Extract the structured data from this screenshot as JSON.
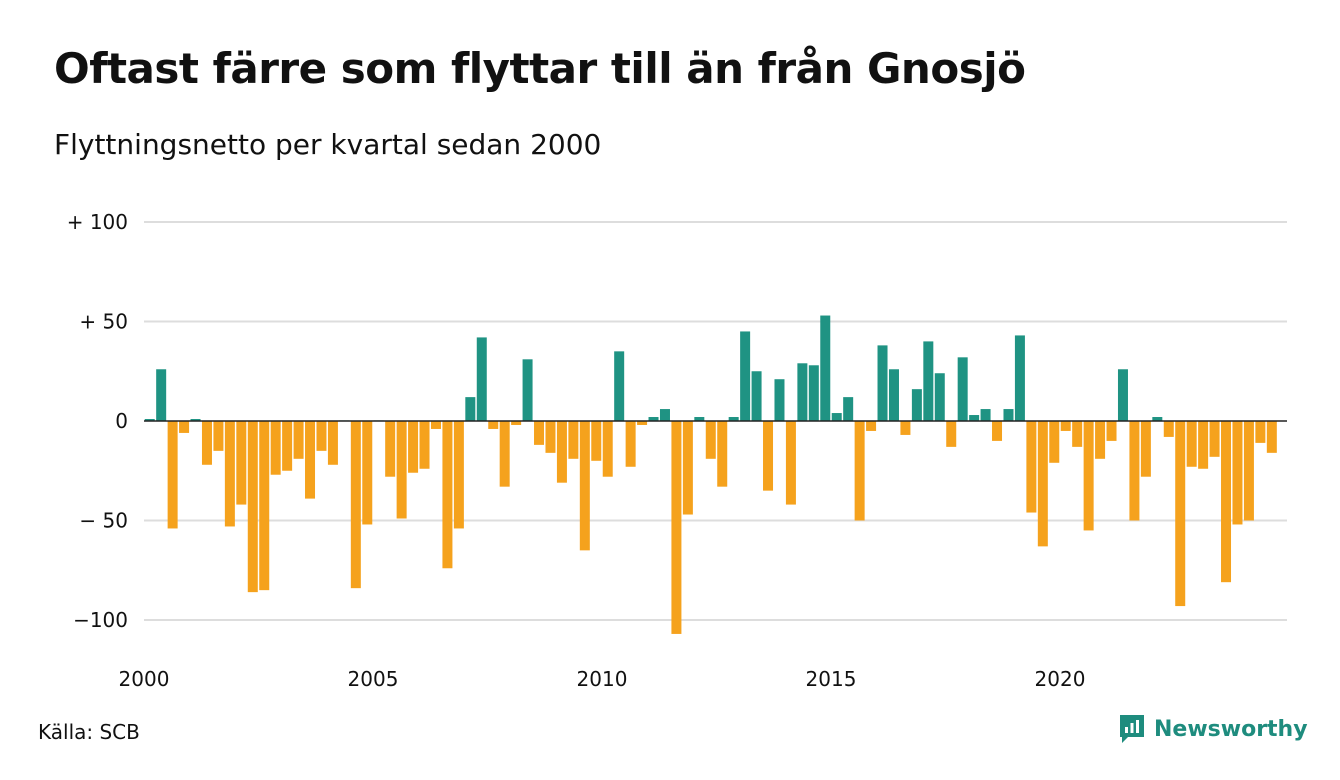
{
  "header": {
    "title": "Oftast färre som flyttar till än från Gnosjö",
    "subtitle": "Flyttningsnetto per kvartal sedan 2000"
  },
  "footer": {
    "source": "Källa: SCB",
    "brand": "Newsworthy",
    "brand_icon": "newsworthy-logo-icon"
  },
  "colors": {
    "positive": "#1f9383",
    "negative": "#f5a21d",
    "grid": "#dddddd",
    "brand": "#1e8c7e"
  },
  "chart_data": {
    "type": "bar",
    "title": "Oftast färre som flyttar till än från Gnosjö",
    "subtitle": "Flyttningsnetto per kvartal sedan 2000",
    "x_start": "2000-Q1",
    "x_ticks": [
      "2000",
      "2005",
      "2010",
      "2015",
      "2020"
    ],
    "y_ticks": [
      {
        "value": 100,
        "label": "+ 100"
      },
      {
        "value": 50,
        "label": "+  50"
      },
      {
        "value": 0,
        "label": "0"
      },
      {
        "value": -50,
        "label": "− 50"
      },
      {
        "value": -100,
        "label": "−100"
      }
    ],
    "ylim": [
      -107,
      105
    ],
    "grid": true,
    "values": [
      1,
      26,
      -54,
      -6,
      1,
      -22,
      -15,
      -53,
      -42,
      -86,
      -85,
      -27,
      -25,
      -19,
      -39,
      -15,
      -22,
      0,
      -84,
      -52,
      0,
      -28,
      -49,
      -26,
      -24,
      -4,
      -74,
      -54,
      12,
      42,
      -4,
      -33,
      -2,
      31,
      -12,
      -16,
      -31,
      -19,
      -65,
      -20,
      -28,
      35,
      -23,
      -2,
      2,
      6,
      -107,
      -47,
      2,
      -19,
      -33,
      2,
      45,
      25,
      -35,
      21,
      -42,
      29,
      28,
      53,
      4,
      12,
      -50,
      -5,
      38,
      26,
      -7,
      16,
      40,
      24,
      -13,
      32,
      3,
      6,
      -10,
      6,
      43,
      -46,
      -63,
      -21,
      -5,
      -13,
      -55,
      -19,
      -10,
      26,
      -50,
      -28,
      2,
      -8,
      -93,
      -23,
      -24,
      -18,
      -81,
      -52,
      -50,
      -11,
      -16
    ]
  }
}
